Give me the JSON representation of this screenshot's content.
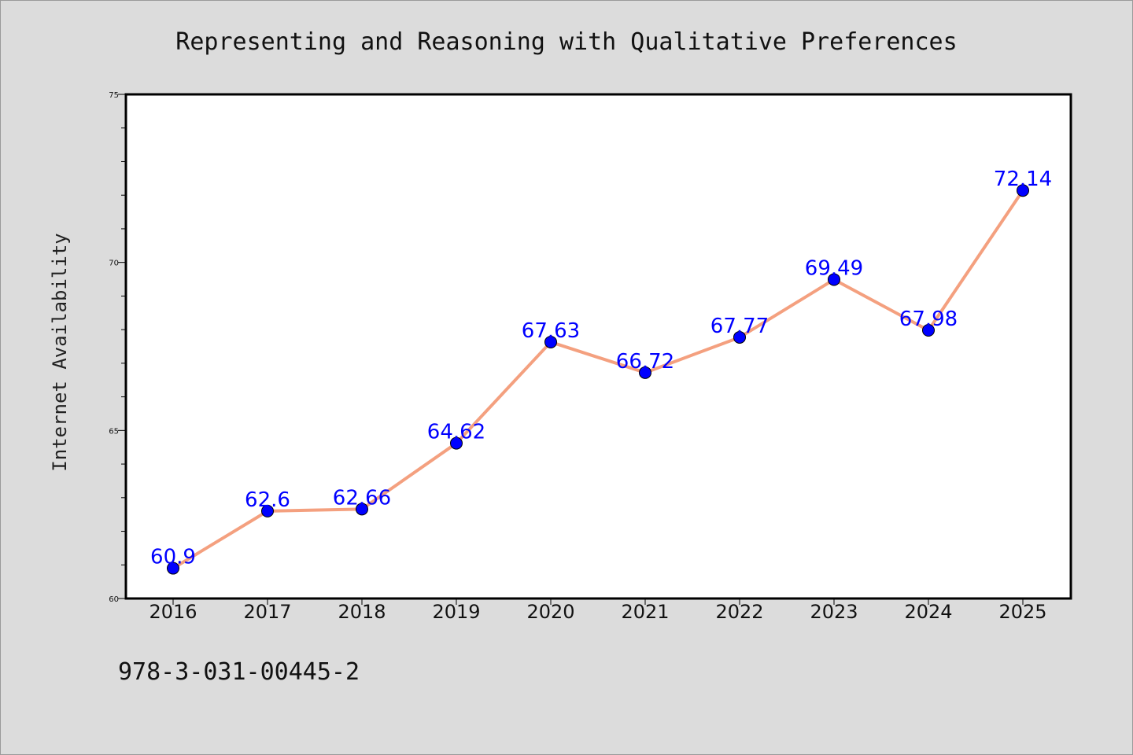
{
  "chart_data": {
    "type": "line",
    "title": "Representing and Reasoning with Qualitative Preferences",
    "xlabel": "",
    "ylabel": "Internet Availability",
    "categories": [
      "2016",
      "2017",
      "2018",
      "2019",
      "2020",
      "2021",
      "2022",
      "2023",
      "2024",
      "2025"
    ],
    "series": [
      {
        "values": [
          60.9,
          62.6,
          62.66,
          64.62,
          67.63,
          66.72,
          67.77,
          69.49,
          67.98,
          72.14
        ],
        "labels": [
          "60.9",
          "62.6",
          "62.66",
          "64.62",
          "67.63",
          "66.72",
          "67.77",
          "69.49",
          "67.98",
          "72.14"
        ],
        "line_color": "#f4a07f",
        "marker_color": "#0000ff",
        "label_color": "#0000ff"
      }
    ],
    "ylim": [
      60,
      75
    ],
    "yticks": [
      "60",
      "65",
      "70",
      "75"
    ],
    "grid": false,
    "legend": "none"
  },
  "footer": {
    "isbn": "978-3-031-00445-2"
  },
  "colors": {
    "background": "#dcdcdc",
    "plot_background": "#ffffff",
    "axis": "#000000"
  }
}
